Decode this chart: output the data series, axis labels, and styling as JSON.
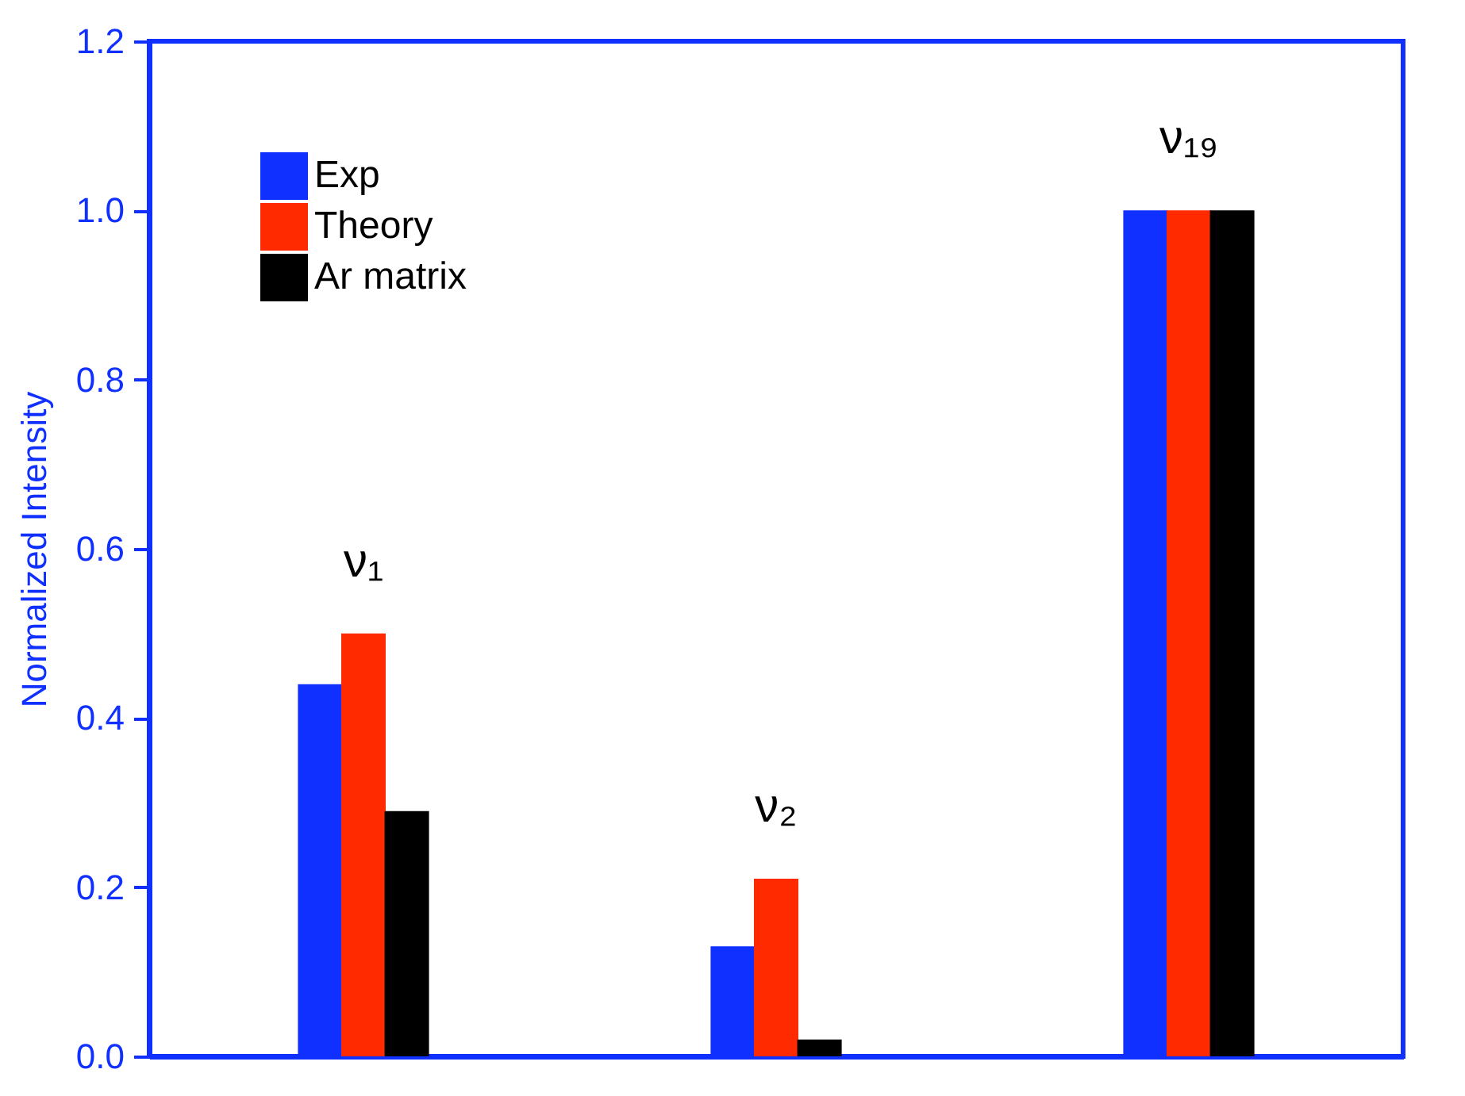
{
  "chart_data": {
    "type": "bar",
    "ylabel": "Normalized Intensity",
    "categories": [
      null,
      null,
      null
    ],
    "series": [
      {
        "name": "Exp",
        "color": "#1030ff",
        "values": [
          0.44,
          0.13,
          1.0
        ]
      },
      {
        "name": "Theory",
        "color": "#ff2a00",
        "values": [
          0.5,
          0.21,
          1.0
        ]
      },
      {
        "name": "Ar matrix",
        "color": "#000000",
        "values": [
          0.29,
          0.02,
          1.0
        ]
      }
    ],
    "annotations": [
      "ν₁",
      "ν₂",
      "ν₁₉"
    ],
    "ylim": [
      0,
      1.2
    ],
    "yticks": [
      {
        "value": 0,
        "label": "0.0"
      },
      0.2,
      0.4,
      0.6,
      0.8,
      {
        "value": 1,
        "label": "1.0"
      },
      1.2
    ],
    "tick_labels": "y",
    "legend": "top left",
    "grid": false
  }
}
